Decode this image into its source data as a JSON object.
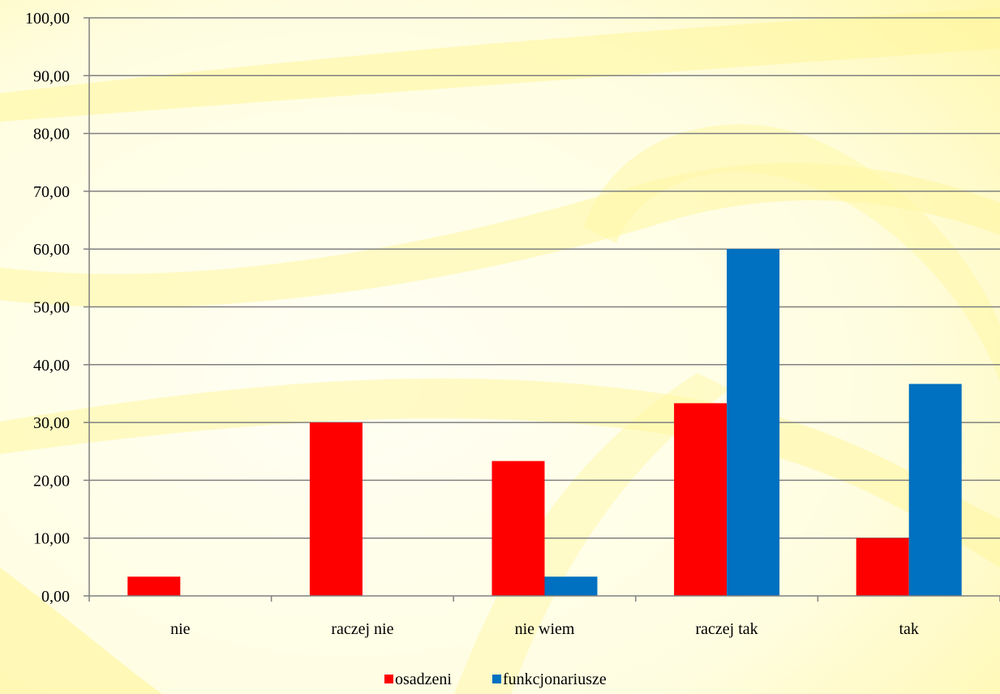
{
  "chart_data": {
    "type": "bar",
    "categories": [
      "nie",
      "raczej nie",
      "nie wiem",
      "raczej tak",
      "tak"
    ],
    "series": [
      {
        "name": "osadzeni",
        "values": [
          3.33,
          30.0,
          23.33,
          33.33,
          10.0
        ]
      },
      {
        "name": "funkcjonariusze",
        "values": [
          0,
          0,
          3.33,
          60.0,
          36.67
        ]
      }
    ],
    "y_ticks": [
      "0,00",
      "10,00",
      "20,00",
      "30,00",
      "40,00",
      "50,00",
      "60,00",
      "70,00",
      "80,00",
      "90,00",
      "100,00"
    ],
    "ylim": [
      0,
      100
    ],
    "grid": true,
    "legend_position": "bottom-center",
    "colors": {
      "osadzeni": "#FF0000",
      "funkcjonariusze": "#0070C0",
      "gridline": "#808080",
      "background_base": "#FFFFF0",
      "background_accent": "#FFF799"
    }
  }
}
